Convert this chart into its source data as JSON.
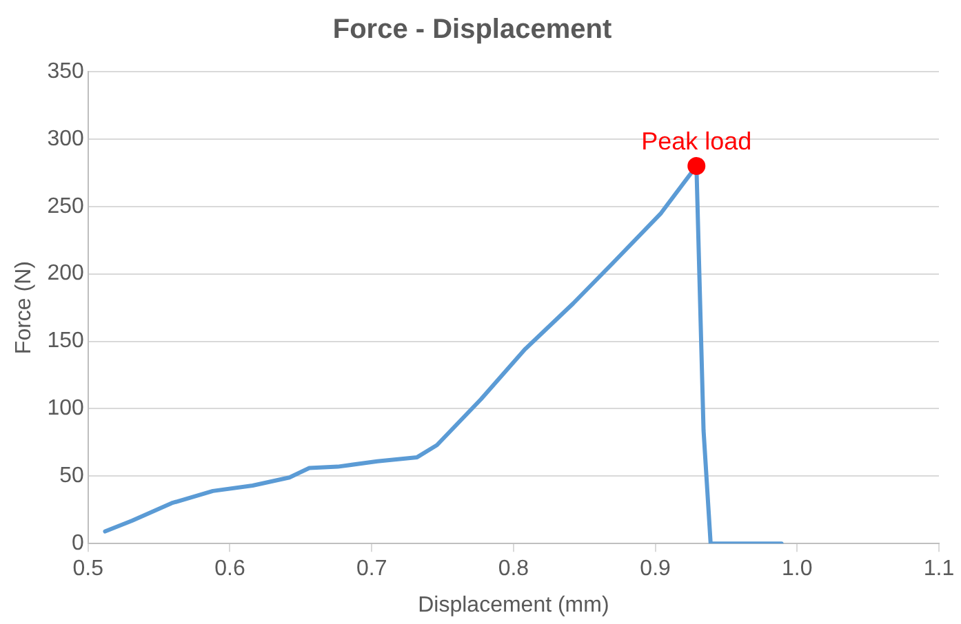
{
  "chart_data": {
    "type": "line",
    "title": "Force - Displacement",
    "xlabel": "Displacement (mm)",
    "ylabel": "Force (N)",
    "xlim": [
      0.5,
      1.1
    ],
    "xticks": [
      {
        "value": 0.5,
        "label": "0.5"
      },
      {
        "value": 0.6,
        "label": "0.6"
      },
      {
        "value": 0.7,
        "label": "0.7"
      },
      {
        "value": 0.8,
        "label": "0.8"
      },
      {
        "value": 0.9,
        "label": "0.9"
      },
      {
        "value": 1.0,
        "label": "1.0"
      },
      {
        "value": 1.1,
        "label": "1.1"
      }
    ],
    "ylim": [
      0,
      350
    ],
    "yticks": [
      0,
      50,
      100,
      150,
      200,
      250,
      300,
      350
    ],
    "grid": "y",
    "marker": "none",
    "line_style": "solid",
    "series": [
      {
        "color": "#5b9bd5",
        "x": [
          0.512,
          0.531,
          0.559,
          0.588,
          0.616,
          0.642,
          0.656,
          0.676,
          0.704,
          0.732,
          0.746,
          0.777,
          0.808,
          0.842,
          0.87,
          0.904,
          0.929,
          0.934,
          0.939,
          0.989
        ],
        "values": [
          9,
          17,
          30,
          39,
          43,
          49,
          56,
          57,
          61,
          64,
          73,
          107,
          144,
          178,
          208,
          245,
          280,
          84,
          0,
          0
        ]
      },
      {
        "type": "scatter",
        "color": "#ff0000",
        "marker": "circle",
        "x": [
          0.929
        ],
        "values": [
          280
        ]
      }
    ],
    "annotations": [
      {
        "text": "Peak load",
        "x": 0.929,
        "y": 280
      }
    ]
  }
}
